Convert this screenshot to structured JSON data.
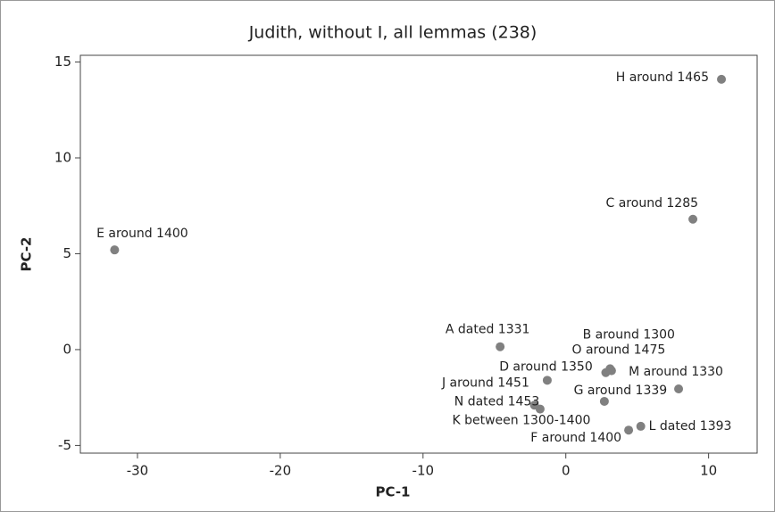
{
  "chart_data": {
    "type": "scatter",
    "title": "Judith, without I, all lemmas (238)",
    "xlabel": "PC-1",
    "ylabel": "PC-2",
    "series": [
      {
        "color": "#808080",
        "labels": [
          "A dated 1331",
          "B around 1300",
          "C around 1285",
          "D around 1350",
          "E around 1400",
          "F around 1400",
          "G around 1339",
          "H around 1465",
          "J around 1451",
          "K between 1300-1400",
          "L dated 1393",
          "M around 1330",
          "N dated 1453",
          "O around 1475"
        ],
        "x": [
          -4.6,
          3.1,
          8.9,
          2.8,
          -31.6,
          4.4,
          2.7,
          10.9,
          -1.3,
          -1.8,
          5.25,
          7.9,
          -2.2,
          3.2
        ],
        "values": [
          0.15,
          -1.0,
          6.8,
          -1.2,
          5.2,
          -4.2,
          -2.7,
          14.1,
          -1.6,
          -3.1,
          -4.0,
          -2.05,
          -2.9,
          -1.1
        ]
      }
    ],
    "xlim": [
      -34,
      13.4
    ],
    "xticks": [
      -30,
      -20,
      -10,
      0,
      10
    ],
    "ylim": [
      -5.4,
      15.35
    ],
    "yticks": [
      -5,
      0,
      5,
      10,
      15
    ]
  }
}
